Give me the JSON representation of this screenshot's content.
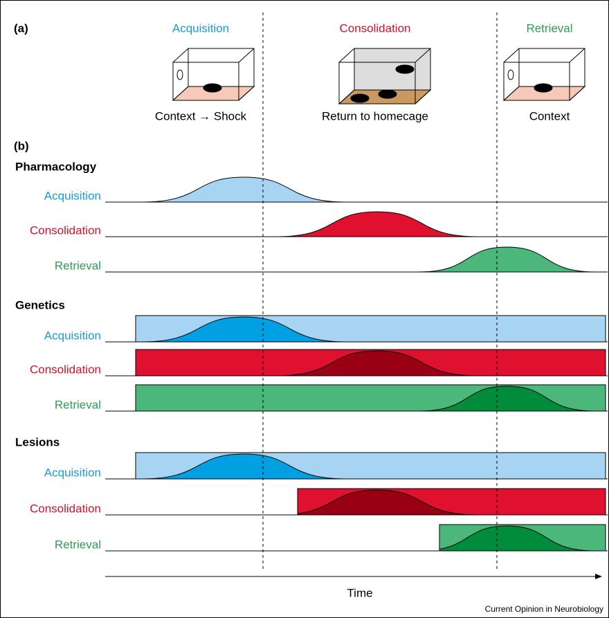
{
  "panel_a": {
    "label": "(a)",
    "stages": [
      {
        "title": "Acquisition",
        "caption": "Context → Shock"
      },
      {
        "title": "Consolidation",
        "caption": "Return to homecage"
      },
      {
        "title": "Retrieval",
        "caption": "Context"
      }
    ]
  },
  "panel_b": {
    "label": "(b)",
    "sections": [
      {
        "title": "Pharmacology",
        "rows": [
          "Acquisition",
          "Consolidation",
          "Retrieval"
        ]
      },
      {
        "title": "Genetics",
        "rows": [
          "Acquisition",
          "Consolidation",
          "Retrieval"
        ]
      },
      {
        "title": "Lesions",
        "rows": [
          "Acquisition",
          "Consolidation",
          "Retrieval"
        ]
      }
    ]
  },
  "axis_label": "Time",
  "footer": "Current Opinion in Neurobiology"
}
